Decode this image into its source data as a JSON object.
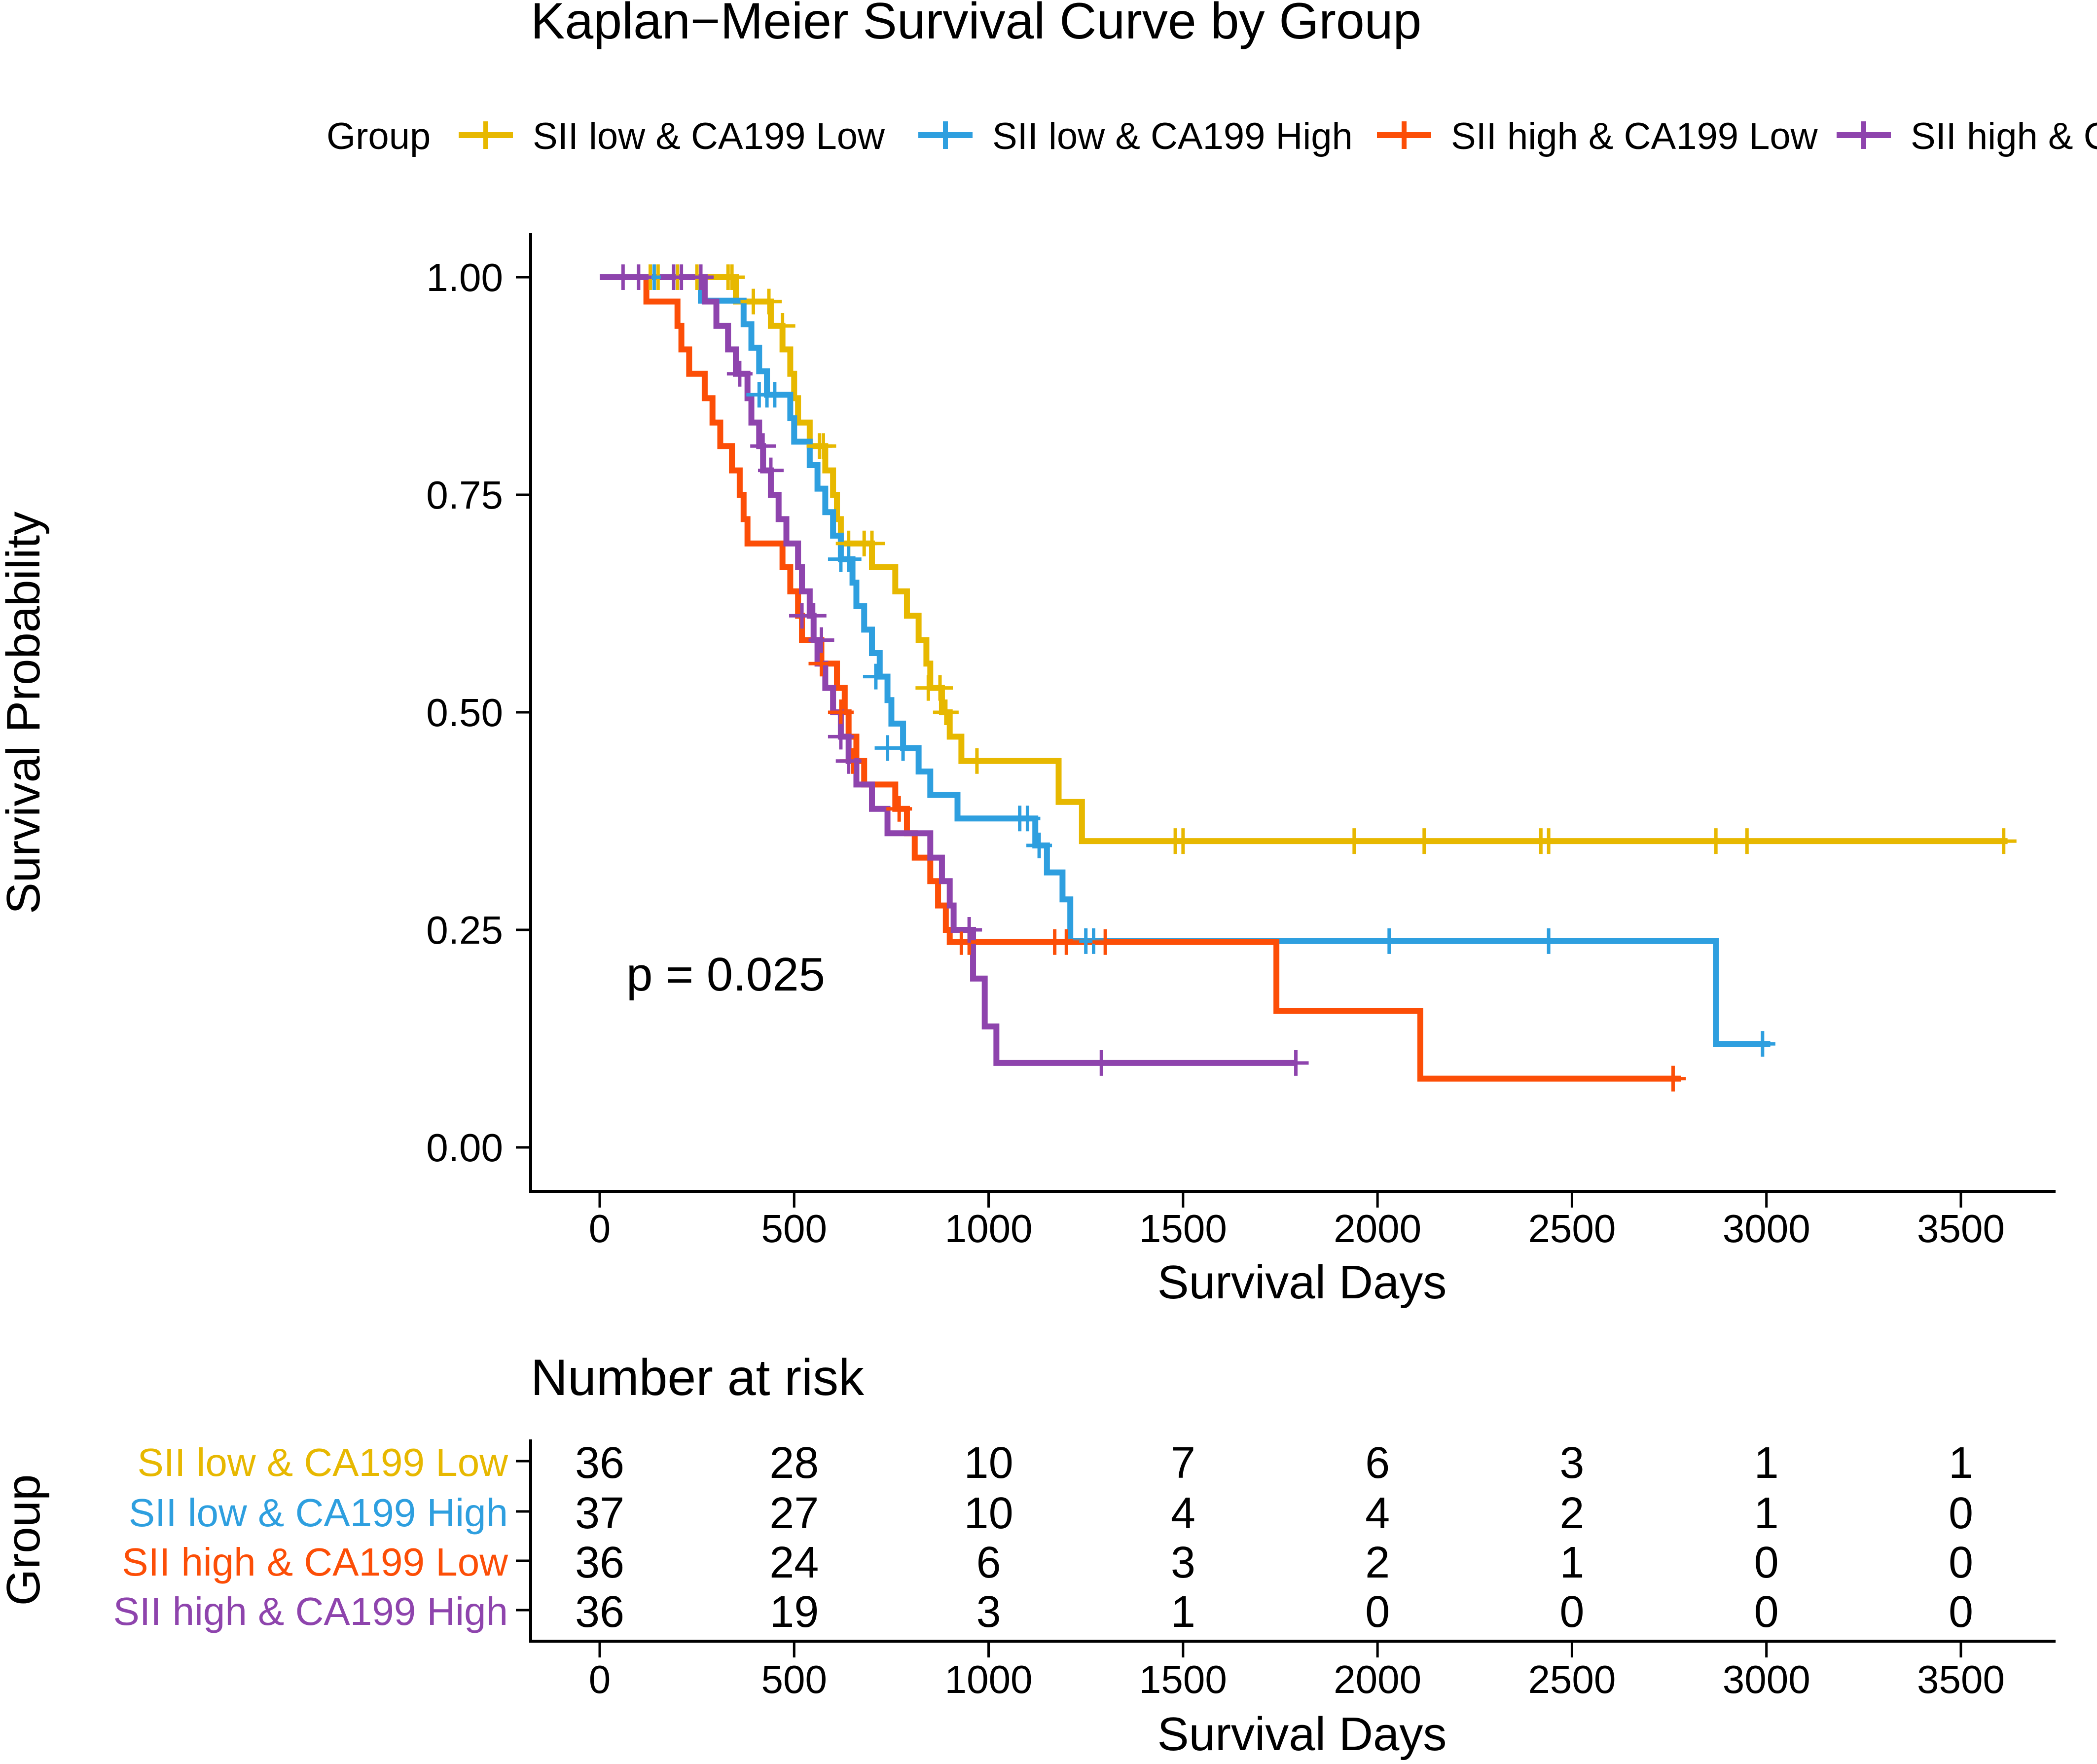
{
  "chart_data": [
    {
      "type": "line",
      "subtype": "kaplan-meier",
      "title": "Kaplan−Meier Survival Curve by Group",
      "xlabel": "Survival Days",
      "ylabel": "Survival Probability",
      "xlim": [
        0,
        3600
      ],
      "ylim": [
        0,
        1
      ],
      "xticks": [
        0,
        500,
        1000,
        1500,
        2000,
        2500,
        3000,
        3500
      ],
      "yticks": [
        0,
        0.25,
        0.5,
        0.75,
        1
      ],
      "ytick_labels": [
        "0.00",
        "0.25",
        "0.50",
        "0.75",
        "1.00"
      ],
      "legend": {
        "title": "Group",
        "position": "top",
        "entries": [
          "SII low & CA199 Low",
          "SII low & CA199 High",
          "SII high & CA199 Low",
          "SII high & C"
        ]
      },
      "annotation": "p = 0.025",
      "series": [
        {
          "name": "SII low & CA199 Low",
          "color": "#E7B800",
          "steps": [
            [
              0,
              1.0
            ],
            [
              310,
              1.0
            ],
            [
              350,
              0.972
            ],
            [
              400,
              0.972
            ],
            [
              440,
              0.944
            ],
            [
              470,
              0.917
            ],
            [
              490,
              0.889
            ],
            [
              500,
              0.861
            ],
            [
              510,
              0.833
            ],
            [
              540,
              0.806
            ],
            [
              560,
              0.806
            ],
            [
              580,
              0.778
            ],
            [
              600,
              0.75
            ],
            [
              610,
              0.722
            ],
            [
              620,
              0.694
            ],
            [
              660,
              0.694
            ],
            [
              700,
              0.667
            ],
            [
              760,
              0.639
            ],
            [
              790,
              0.611
            ],
            [
              820,
              0.583
            ],
            [
              840,
              0.556
            ],
            [
              850,
              0.528
            ],
            [
              880,
              0.5
            ],
            [
              900,
              0.472
            ],
            [
              910,
              0.472
            ],
            [
              930,
              0.444
            ],
            [
              1170,
              0.444
            ],
            [
              1180,
              0.397
            ],
            [
              1230,
              0.397
            ],
            [
              1240,
              0.352
            ],
            [
              3620,
              0.352
            ]
          ],
          "censored": [
            [
              130,
              1.0
            ],
            [
              150,
              1.0
            ],
            [
              200,
              1.0
            ],
            [
              250,
              1.0
            ],
            [
              330,
              1.0
            ],
            [
              340,
              1.0
            ],
            [
              395,
              0.972
            ],
            [
              435,
              0.972
            ],
            [
              470,
              0.944
            ],
            [
              565,
              0.806
            ],
            [
              575,
              0.806
            ],
            [
              640,
              0.694
            ],
            [
              680,
              0.694
            ],
            [
              700,
              0.694
            ],
            [
              845,
              0.528
            ],
            [
              875,
              0.528
            ],
            [
              890,
              0.5
            ],
            [
              970,
              0.444
            ],
            [
              1480,
              0.352
            ],
            [
              1500,
              0.352
            ],
            [
              1940,
              0.352
            ],
            [
              2120,
              0.352
            ],
            [
              2420,
              0.352
            ],
            [
              2440,
              0.352
            ],
            [
              2870,
              0.352
            ],
            [
              2950,
              0.352
            ],
            [
              3610,
              0.352
            ]
          ]
        },
        {
          "name": "SII low & CA199 High",
          "color": "#2E9FDF",
          "steps": [
            [
              0,
              1.0
            ],
            [
              250,
              1.0
            ],
            [
              260,
              0.973
            ],
            [
              350,
              0.973
            ],
            [
              370,
              0.946
            ],
            [
              390,
              0.919
            ],
            [
              410,
              0.892
            ],
            [
              430,
              0.865
            ],
            [
              480,
              0.865
            ],
            [
              490,
              0.838
            ],
            [
              500,
              0.811
            ],
            [
              540,
              0.784
            ],
            [
              560,
              0.757
            ],
            [
              580,
              0.73
            ],
            [
              600,
              0.703
            ],
            [
              620,
              0.676
            ],
            [
              650,
              0.649
            ],
            [
              660,
              0.622
            ],
            [
              680,
              0.595
            ],
            [
              700,
              0.568
            ],
            [
              720,
              0.541
            ],
            [
              740,
              0.514
            ],
            [
              750,
              0.487
            ],
            [
              780,
              0.459
            ],
            [
              820,
              0.432
            ],
            [
              850,
              0.405
            ],
            [
              920,
              0.378
            ],
            [
              1100,
              0.378
            ],
            [
              1120,
              0.347
            ],
            [
              1150,
              0.316
            ],
            [
              1190,
              0.285
            ],
            [
              1210,
              0.237
            ],
            [
              2860,
              0.237
            ],
            [
              2870,
              0.119
            ],
            [
              3010,
              0.119
            ]
          ],
          "censored": [
            [
              140,
              1.0
            ],
            [
              190,
              1.0
            ],
            [
              410,
              0.865
            ],
            [
              430,
              0.865
            ],
            [
              450,
              0.865
            ],
            [
              620,
              0.676
            ],
            [
              640,
              0.676
            ],
            [
              710,
              0.541
            ],
            [
              740,
              0.459
            ],
            [
              780,
              0.459
            ],
            [
              1080,
              0.378
            ],
            [
              1100,
              0.378
            ],
            [
              1130,
              0.347
            ],
            [
              1250,
              0.237
            ],
            [
              1270,
              0.237
            ],
            [
              2030,
              0.237
            ],
            [
              2440,
              0.237
            ],
            [
              2990,
              0.119
            ]
          ]
        },
        {
          "name": "SII high & CA199 Low",
          "color": "#FC4E07",
          "steps": [
            [
              0,
              1.0
            ],
            [
              100,
              1.0
            ],
            [
              120,
              0.972
            ],
            [
              190,
              0.972
            ],
            [
              200,
              0.944
            ],
            [
              210,
              0.917
            ],
            [
              230,
              0.889
            ],
            [
              270,
              0.861
            ],
            [
              290,
              0.833
            ],
            [
              310,
              0.806
            ],
            [
              340,
              0.778
            ],
            [
              360,
              0.75
            ],
            [
              370,
              0.722
            ],
            [
              380,
              0.694
            ],
            [
              400,
              0.694
            ],
            [
              440,
              0.694
            ],
            [
              470,
              0.667
            ],
            [
              490,
              0.639
            ],
            [
              510,
              0.611
            ],
            [
              520,
              0.583
            ],
            [
              570,
              0.556
            ],
            [
              610,
              0.528
            ],
            [
              630,
              0.5
            ],
            [
              640,
              0.472
            ],
            [
              660,
              0.444
            ],
            [
              680,
              0.417
            ],
            [
              750,
              0.417
            ],
            [
              760,
              0.389
            ],
            [
              790,
              0.361
            ],
            [
              810,
              0.333
            ],
            [
              850,
              0.306
            ],
            [
              870,
              0.278
            ],
            [
              890,
              0.25
            ],
            [
              900,
              0.236
            ],
            [
              1730,
              0.236
            ],
            [
              1740,
              0.157
            ],
            [
              2100,
              0.157
            ],
            [
              2110,
              0.079
            ],
            [
              2780,
              0.079
            ]
          ],
          "censored": [
            [
              570,
              0.556
            ],
            [
              620,
              0.5
            ],
            [
              650,
              0.444
            ],
            [
              770,
              0.389
            ],
            [
              930,
              0.236
            ],
            [
              950,
              0.236
            ],
            [
              1170,
              0.236
            ],
            [
              1200,
              0.236
            ],
            [
              1300,
              0.236
            ],
            [
              2760,
              0.079
            ]
          ]
        },
        {
          "name": "SII high & CA199 High",
          "color": "#8E44AD",
          "steps": [
            [
              0,
              1.0
            ],
            [
              250,
              1.0
            ],
            [
              270,
              0.972
            ],
            [
              300,
              0.944
            ],
            [
              330,
              0.917
            ],
            [
              350,
              0.889
            ],
            [
              380,
              0.861
            ],
            [
              390,
              0.833
            ],
            [
              410,
              0.806
            ],
            [
              420,
              0.778
            ],
            [
              440,
              0.75
            ],
            [
              460,
              0.722
            ],
            [
              480,
              0.694
            ],
            [
              510,
              0.667
            ],
            [
              520,
              0.639
            ],
            [
              540,
              0.611
            ],
            [
              550,
              0.583
            ],
            [
              560,
              0.556
            ],
            [
              580,
              0.528
            ],
            [
              600,
              0.5
            ],
            [
              620,
              0.472
            ],
            [
              640,
              0.444
            ],
            [
              660,
              0.417
            ],
            [
              700,
              0.389
            ],
            [
              740,
              0.361
            ],
            [
              840,
              0.361
            ],
            [
              850,
              0.333
            ],
            [
              880,
              0.306
            ],
            [
              900,
              0.278
            ],
            [
              910,
              0.25
            ],
            [
              940,
              0.25
            ],
            [
              960,
              0.194
            ],
            [
              990,
              0.139
            ],
            [
              1020,
              0.097
            ],
            [
              1790,
              0.097
            ]
          ],
          "censored": [
            [
              60,
              1.0
            ],
            [
              100,
              1.0
            ],
            [
              190,
              1.0
            ],
            [
              210,
              1.0
            ],
            [
              260,
              1.0
            ],
            [
              360,
              0.889
            ],
            [
              420,
              0.806
            ],
            [
              440,
              0.778
            ],
            [
              520,
              0.611
            ],
            [
              550,
              0.611
            ],
            [
              570,
              0.583
            ],
            [
              620,
              0.472
            ],
            [
              640,
              0.444
            ],
            [
              950,
              0.25
            ],
            [
              1290,
              0.097
            ],
            [
              1790,
              0.097
            ]
          ]
        }
      ]
    },
    {
      "type": "table",
      "title": "Number at risk",
      "ylabel": "Group",
      "xlabel": "Survival Days",
      "xticks": [
        0,
        500,
        1000,
        1500,
        2000,
        2500,
        3000,
        3500
      ],
      "rows": [
        {
          "name": "SII low & CA199 Low",
          "color": "#E7B800",
          "values": [
            36,
            28,
            10,
            7,
            6,
            3,
            1,
            1
          ]
        },
        {
          "name": "SII low & CA199 High",
          "color": "#2E9FDF",
          "values": [
            37,
            27,
            10,
            4,
            4,
            2,
            1,
            0
          ]
        },
        {
          "name": "SII high & CA199 Low",
          "color": "#FC4E07",
          "values": [
            36,
            24,
            6,
            3,
            2,
            1,
            0,
            0
          ]
        },
        {
          "name": "SII high & CA199 High",
          "color": "#8E44AD",
          "values": [
            36,
            19,
            3,
            1,
            0,
            0,
            0,
            0
          ]
        }
      ]
    }
  ]
}
